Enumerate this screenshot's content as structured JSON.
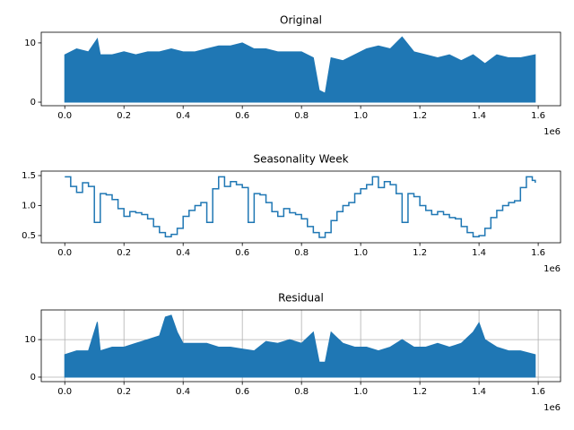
{
  "chart_data": [
    {
      "type": "area",
      "title": "Original",
      "color": "#1f77b4",
      "grid": false,
      "x_offset_label": "1e6",
      "x": [
        0,
        40000,
        80000,
        110000,
        120000,
        160000,
        200000,
        240000,
        280000,
        320000,
        360000,
        400000,
        440000,
        480000,
        520000,
        560000,
        600000,
        640000,
        680000,
        720000,
        760000,
        800000,
        840000,
        860000,
        880000,
        900000,
        940000,
        980000,
        1020000,
        1060000,
        1100000,
        1140000,
        1180000,
        1220000,
        1260000,
        1300000,
        1340000,
        1380000,
        1420000,
        1460000,
        1500000,
        1540000,
        1590000
      ],
      "values": [
        8,
        9,
        8.5,
        10.7,
        8,
        8,
        8.5,
        8,
        8.5,
        8.5,
        9,
        8.5,
        8.5,
        9,
        9.5,
        9.5,
        10,
        9,
        9,
        8.5,
        8.5,
        8.5,
        7.5,
        2,
        1.5,
        7.5,
        7,
        8,
        9,
        9.5,
        9,
        11,
        8.5,
        8,
        7.5,
        8,
        7,
        8,
        6.5,
        8,
        7.5,
        7.5,
        8
      ],
      "xlim": [
        -79500,
        1675500
      ],
      "ylim": [
        -0.6,
        11.8
      ],
      "xticks": [
        {
          "value": 0,
          "label": "0.0"
        },
        {
          "value": 200000,
          "label": "0.2"
        },
        {
          "value": 400000,
          "label": "0.4"
        },
        {
          "value": 600000,
          "label": "0.6"
        },
        {
          "value": 800000,
          "label": "0.8"
        },
        {
          "value": 1000000,
          "label": "1.0"
        },
        {
          "value": 1200000,
          "label": "1.2"
        },
        {
          "value": 1400000,
          "label": "1.4"
        },
        {
          "value": 1600000,
          "label": "1.6"
        }
      ],
      "yticks": [
        0,
        10
      ]
    },
    {
      "type": "line",
      "step": true,
      "title": "Seasonality Week",
      "color": "#1f77b4",
      "grid": false,
      "x_offset_label": "1e6",
      "x": [
        0,
        20000,
        40000,
        60000,
        80000,
        100000,
        120000,
        140000,
        160000,
        180000,
        200000,
        220000,
        240000,
        260000,
        280000,
        300000,
        320000,
        340000,
        360000,
        380000,
        400000,
        420000,
        440000,
        460000,
        480000,
        500000,
        520000,
        540000,
        560000,
        580000,
        600000,
        620000,
        640000,
        660000,
        680000,
        700000,
        720000,
        740000,
        760000,
        780000,
        800000,
        820000,
        840000,
        860000,
        880000,
        900000,
        920000,
        940000,
        960000,
        980000,
        1000000,
        1020000,
        1040000,
        1060000,
        1080000,
        1100000,
        1120000,
        1140000,
        1160000,
        1180000,
        1200000,
        1220000,
        1240000,
        1260000,
        1280000,
        1300000,
        1320000,
        1340000,
        1360000,
        1380000,
        1400000,
        1420000,
        1440000,
        1460000,
        1480000,
        1500000,
        1520000,
        1540000,
        1560000,
        1580000,
        1590000
      ],
      "values": [
        1.48,
        1.32,
        1.22,
        1.38,
        1.32,
        0.72,
        1.2,
        1.18,
        1.1,
        0.95,
        0.82,
        0.9,
        0.88,
        0.85,
        0.78,
        0.65,
        0.55,
        0.48,
        0.52,
        0.62,
        0.82,
        0.92,
        1.0,
        1.05,
        0.72,
        1.28,
        1.48,
        1.32,
        1.4,
        1.35,
        1.3,
        0.72,
        1.2,
        1.18,
        1.05,
        0.9,
        0.82,
        0.95,
        0.88,
        0.85,
        0.78,
        0.65,
        0.55,
        0.47,
        0.55,
        0.75,
        0.9,
        1.0,
        1.05,
        1.2,
        1.28,
        1.35,
        1.48,
        1.3,
        1.4,
        1.35,
        1.2,
        0.72,
        1.2,
        1.15,
        1.0,
        0.92,
        0.85,
        0.9,
        0.85,
        0.8,
        0.78,
        0.65,
        0.55,
        0.48,
        0.5,
        0.62,
        0.8,
        0.92,
        1.0,
        1.05,
        1.08,
        1.3,
        1.48,
        1.42,
        1.38
      ],
      "xlim": [
        -79500,
        1675500
      ],
      "ylim": [
        0.38,
        1.575
      ],
      "xticks": [
        {
          "value": 0,
          "label": "0.0"
        },
        {
          "value": 200000,
          "label": "0.2"
        },
        {
          "value": 400000,
          "label": "0.4"
        },
        {
          "value": 600000,
          "label": "0.6"
        },
        {
          "value": 800000,
          "label": "0.8"
        },
        {
          "value": 1000000,
          "label": "1.0"
        },
        {
          "value": 1200000,
          "label": "1.2"
        },
        {
          "value": 1400000,
          "label": "1.4"
        },
        {
          "value": 1600000,
          "label": "1.6"
        }
      ],
      "yticks": [
        0.5,
        {
          "value": 1,
          "label": "1.0"
        },
        1.5
      ]
    },
    {
      "type": "area",
      "title": "Residual",
      "color": "#1f77b4",
      "grid": true,
      "x_offset_label": "1e6",
      "x": [
        0,
        40000,
        80000,
        110000,
        120000,
        160000,
        200000,
        240000,
        280000,
        320000,
        340000,
        360000,
        380000,
        400000,
        440000,
        480000,
        520000,
        560000,
        600000,
        640000,
        680000,
        720000,
        760000,
        800000,
        840000,
        860000,
        880000,
        900000,
        940000,
        980000,
        1020000,
        1060000,
        1100000,
        1140000,
        1180000,
        1220000,
        1260000,
        1300000,
        1340000,
        1380000,
        1400000,
        1420000,
        1460000,
        1500000,
        1540000,
        1590000
      ],
      "values": [
        6,
        7,
        7,
        14.7,
        7,
        8,
        8,
        9,
        10,
        11,
        16,
        16.5,
        12,
        9,
        9,
        9,
        8,
        8,
        7.5,
        7,
        9.5,
        9,
        10,
        9,
        12,
        4,
        4,
        12,
        9,
        8,
        8,
        7,
        8,
        10,
        8,
        8,
        9,
        8,
        9,
        12,
        14.5,
        10,
        8,
        7,
        7,
        6
      ],
      "xlim": [
        -79500,
        1675500
      ],
      "ylim": [
        -1.2,
        17.9
      ],
      "xticks": [
        {
          "value": 0,
          "label": "0.0"
        },
        {
          "value": 200000,
          "label": "0.2"
        },
        {
          "value": 400000,
          "label": "0.4"
        },
        {
          "value": 600000,
          "label": "0.6"
        },
        {
          "value": 800000,
          "label": "0.8"
        },
        {
          "value": 1000000,
          "label": "1.0"
        },
        {
          "value": 1200000,
          "label": "1.2"
        },
        {
          "value": 1400000,
          "label": "1.4"
        },
        {
          "value": 1600000,
          "label": "1.6"
        }
      ],
      "yticks": [
        0,
        10
      ]
    }
  ]
}
